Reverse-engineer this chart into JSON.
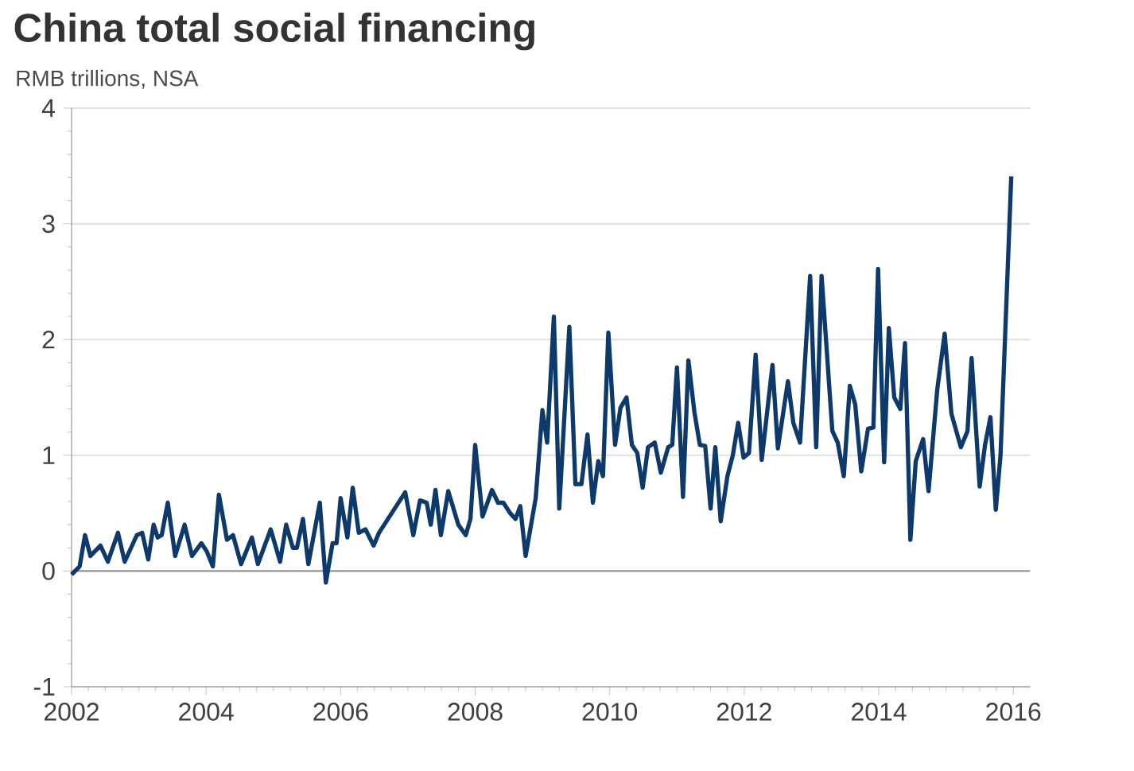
{
  "chart_data": {
    "type": "line",
    "title": "China total social financing",
    "subtitle": "RMB trillions, NSA",
    "color": "#0d3a6b",
    "grid": "y",
    "xlim": [
      2002,
      2016.25
    ],
    "ylim": [
      -1,
      4
    ],
    "xticks": [
      2002,
      2004,
      2006,
      2008,
      2010,
      2012,
      2014,
      2016
    ],
    "yticks": [
      -1,
      0,
      1,
      2,
      3,
      4
    ],
    "x": [
      2002.0,
      2002.12,
      2002.2,
      2002.28,
      2002.43,
      2002.54,
      2002.69,
      2002.79,
      2002.97,
      2003.05,
      2003.14,
      2003.22,
      2003.28,
      2003.34,
      2003.43,
      2003.54,
      2003.68,
      2003.79,
      2003.93,
      2004.01,
      2004.1,
      2004.19,
      2004.31,
      2004.4,
      2004.52,
      2004.68,
      2004.77,
      2004.96,
      2005.1,
      2005.19,
      2005.29,
      2005.35,
      2005.44,
      2005.52,
      2005.69,
      2005.78,
      2005.88,
      2005.94,
      2006.0,
      2006.1,
      2006.18,
      2006.27,
      2006.37,
      2006.49,
      2006.57,
      2006.96,
      2007.08,
      2007.18,
      2007.28,
      2007.34,
      2007.41,
      2007.49,
      2007.6,
      2007.75,
      2007.86,
      2007.93,
      2008.0,
      2008.11,
      2008.25,
      2008.34,
      2008.42,
      2008.52,
      2008.6,
      2008.67,
      2008.75,
      2008.9,
      2009.0,
      2009.07,
      2009.17,
      2009.25,
      2009.4,
      2009.49,
      2009.58,
      2009.67,
      2009.75,
      2009.83,
      2009.9,
      2009.98,
      2010.08,
      2010.16,
      2010.25,
      2010.33,
      2010.41,
      2010.49,
      2010.57,
      2010.67,
      2010.76,
      2010.87,
      2010.93,
      2011.0,
      2011.09,
      2011.17,
      2011.26,
      2011.34,
      2011.42,
      2011.5,
      2011.57,
      2011.65,
      2011.75,
      2011.83,
      2011.91,
      2011.99,
      2012.07,
      2012.17,
      2012.26,
      2012.42,
      2012.5,
      2012.65,
      2012.73,
      2012.83,
      2012.98,
      2013.07,
      2013.15,
      2013.31,
      2013.39,
      2013.48,
      2013.57,
      2013.65,
      2013.74,
      2013.84,
      2013.92,
      2013.99,
      2014.08,
      2014.15,
      2014.23,
      2014.32,
      2014.39,
      2014.47,
      2014.55,
      2014.66,
      2014.74,
      2014.87,
      2014.98,
      2015.08,
      2015.22,
      2015.32,
      2015.38,
      2015.5,
      2015.58,
      2015.66,
      2015.74,
      2015.81,
      2015.97
    ],
    "values": [
      -0.03,
      0.04,
      0.31,
      0.13,
      0.22,
      0.08,
      0.33,
      0.08,
      0.31,
      0.33,
      0.1,
      0.4,
      0.29,
      0.31,
      0.59,
      0.13,
      0.4,
      0.13,
      0.24,
      0.17,
      0.04,
      0.66,
      0.27,
      0.31,
      0.06,
      0.29,
      0.06,
      0.36,
      0.08,
      0.4,
      0.2,
      0.2,
      0.45,
      0.06,
      0.59,
      -0.1,
      0.24,
      0.24,
      0.63,
      0.29,
      0.72,
      0.33,
      0.36,
      0.22,
      0.33,
      0.68,
      0.31,
      0.61,
      0.59,
      0.4,
      0.7,
      0.31,
      0.69,
      0.4,
      0.31,
      0.45,
      1.09,
      0.47,
      0.7,
      0.59,
      0.59,
      0.5,
      0.45,
      0.56,
      0.13,
      0.63,
      1.39,
      1.11,
      2.2,
      0.54,
      2.11,
      0.75,
      0.75,
      1.18,
      0.59,
      0.95,
      0.82,
      2.06,
      1.09,
      1.41,
      1.5,
      1.09,
      1.02,
      0.72,
      1.07,
      1.11,
      0.85,
      1.07,
      1.09,
      1.76,
      0.64,
      1.82,
      1.37,
      1.09,
      1.08,
      0.54,
      1.07,
      0.43,
      0.82,
      1.0,
      1.28,
      0.98,
      1.02,
      1.87,
      0.96,
      1.78,
      1.06,
      1.64,
      1.28,
      1.11,
      2.55,
      1.07,
      2.55,
      1.21,
      1.11,
      0.82,
      1.6,
      1.44,
      0.86,
      1.23,
      1.24,
      2.61,
      0.94,
      2.1,
      1.5,
      1.4,
      1.97,
      0.27,
      0.95,
      1.14,
      0.69,
      1.57,
      2.05,
      1.36,
      1.07,
      1.21,
      1.84,
      0.73,
      1.09,
      1.33,
      0.53,
      1.0,
      3.41
    ]
  }
}
